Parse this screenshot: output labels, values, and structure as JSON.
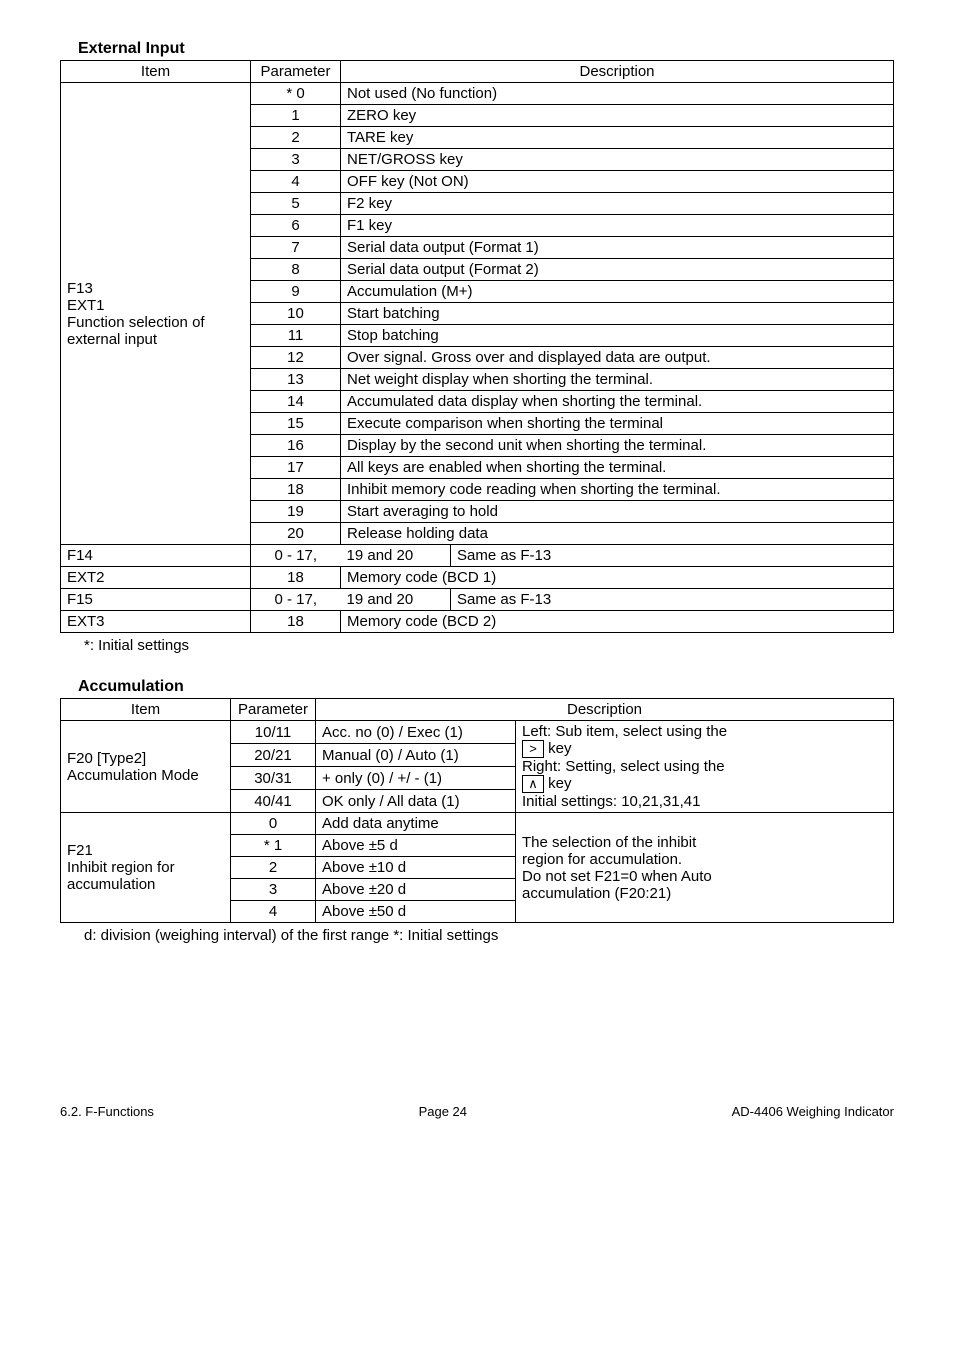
{
  "sections": {
    "external_input": {
      "title": "External Input",
      "headers": {
        "item": "Item",
        "parameter": "Parameter",
        "description": "Description"
      },
      "group1_item_lines": [
        "F13",
        "EXT1",
        "Function selection of",
        "external input"
      ],
      "group1_rows": [
        {
          "param": "* 0",
          "desc": "Not used (No function)"
        },
        {
          "param": "1",
          "desc": "ZERO key"
        },
        {
          "param": "2",
          "desc": "TARE key"
        },
        {
          "param": "3",
          "desc": "NET/GROSS key"
        },
        {
          "param": "4",
          "desc": "OFF key (Not ON)"
        },
        {
          "param": "5",
          "desc": "F2 key"
        },
        {
          "param": "6",
          "desc": "F1 key"
        },
        {
          "param": "7",
          "desc": "Serial data output (Format 1)"
        },
        {
          "param": "8",
          "desc": "Serial data output (Format 2)"
        },
        {
          "param": "9",
          "desc": "Accumulation (M+)"
        },
        {
          "param": "10",
          "desc": "Start batching"
        },
        {
          "param": "11",
          "desc": "Stop batching"
        },
        {
          "param": "12",
          "desc": "Over signal. Gross over and displayed data are output."
        },
        {
          "param": "13",
          "desc": "Net weight display when shorting the terminal."
        },
        {
          "param": "14",
          "desc": "Accumulated data display when shorting the terminal."
        },
        {
          "param": "15",
          "desc": "Execute comparison when shorting the terminal"
        },
        {
          "param": "16",
          "desc": "Display by the second unit when shorting the terminal."
        },
        {
          "param": "17",
          "desc": "All keys are enabled when shorting the terminal."
        },
        {
          "param": "18",
          "desc": "Inhibit memory code reading when shorting the terminal."
        },
        {
          "param": "19",
          "desc": "Start averaging to hold"
        },
        {
          "param": "20",
          "desc": "Release holding data"
        }
      ],
      "f14": {
        "item": "F14",
        "param": "0 - 17,",
        "sub": "19 and 20",
        "desc": "Same as F-13"
      },
      "ext2": {
        "item": "EXT2",
        "param": "18",
        "desc": "Memory code (BCD 1)"
      },
      "f15": {
        "item": "F15",
        "param": "0 - 17,",
        "sub": "19 and 20",
        "desc": "Same as F-13"
      },
      "ext3": {
        "item": "EXT3",
        "param": "18",
        "desc": "Memory code (BCD 2)"
      },
      "footnote": "*:   Initial settings"
    },
    "accumulation": {
      "title": "Accumulation",
      "headers": {
        "item": "Item",
        "parameter": "Parameter",
        "description": "Description"
      },
      "f20_item_lines": [
        "F20   [Type2]",
        "Accumulation Mode"
      ],
      "f20_rows": [
        {
          "param": "10/11",
          "mid": "Acc. no (0) / Exec (1)"
        },
        {
          "param": "20/21",
          "mid": "Manual (0) / Auto (1)"
        },
        {
          "param": "30/31",
          "mid": "+ only (0) / +/ - (1)"
        },
        {
          "param": "40/41",
          "mid": "OK only / All data (1)"
        }
      ],
      "f20_right": {
        "l1": "Left: Sub item, select using the",
        "l2_after": " key",
        "l3": "Right: Setting, select using the",
        "l4_after": " key",
        "l5": "Initial settings: 10,21,31,41"
      },
      "f21_item_lines": [
        "F21",
        "Inhibit region for",
        "accumulation"
      ],
      "f21_rows": [
        {
          "param": "0",
          "mid": "Add data anytime"
        },
        {
          "param": "* 1",
          "mid": "Above  ±5 d"
        },
        {
          "param": "2",
          "mid": "Above  ±10 d"
        },
        {
          "param": "3",
          "mid": "Above  ±20 d"
        },
        {
          "param": "4",
          "mid": "Above  ±50 d"
        }
      ],
      "f21_right_lines": [
        "The selection of the inhibit",
        "region for accumulation.",
        "Do not set F21=0 when Auto",
        "accumulation (F20:21)"
      ],
      "footnote": "d:   division (weighing interval) of the first range   *:   Initial settings"
    }
  },
  "footer": {
    "left": "6.2. F-Functions",
    "mid": "Page 24",
    "right": "AD-4406 Weighing Indicator"
  },
  "glyphs": {
    "gt": ">",
    "caret": "∧"
  }
}
